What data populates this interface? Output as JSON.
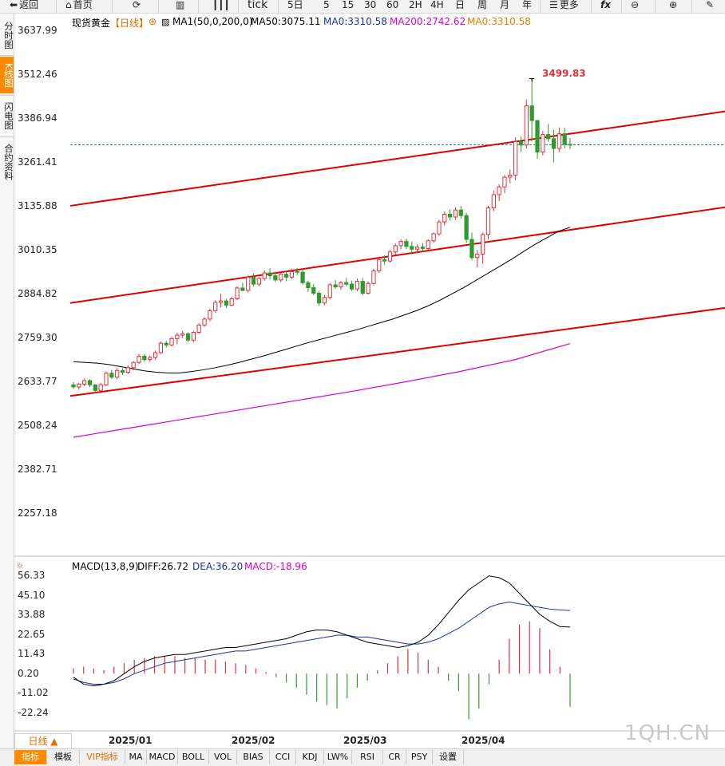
{
  "toolbar": {
    "back": "返回",
    "home": "首页",
    "tick": "tick",
    "periods": [
      "5日",
      "5",
      "15",
      "30",
      "60",
      "2H",
      "4H",
      "日",
      "周",
      "月",
      "年"
    ],
    "more": "更多"
  },
  "left_tabs": [
    "分时图",
    "K线图",
    "闪电图",
    "合约资料"
  ],
  "header": {
    "instrument": "现货黄金",
    "period": "【日线】",
    "ma1": "MA1(50,0,200,0)",
    "ma50": "MA50:3075.11",
    "ma0a": "MA0:3310.58",
    "ma200": "MA200:2742.62",
    "ma0b": "MA0:3310.58"
  },
  "macd_header": {
    "name": "MACD(13,8,9)",
    "diff": "DIFF:26.72",
    "dea": "DEA:36.20",
    "macd": "MACD:-18.96"
  },
  "y_ticks": [
    "3637.99",
    "3512.46",
    "3386.94",
    "3261.41",
    "3135.88",
    "3010.35",
    "2884.82",
    "2759.30",
    "2633.77",
    "2508.24",
    "2382.71",
    "2257.18"
  ],
  "macd_ticks": [
    "56.33",
    "45.10",
    "33.88",
    "22.65",
    "11.43",
    "0.20",
    "-11.02",
    "-22.24"
  ],
  "x_ticks": [
    "2025/01",
    "2025/02",
    "2025/03",
    "2025/04"
  ],
  "high_label": "3499.83",
  "period_select": "日线 ▲",
  "bottom_tabs": [
    "指标",
    "模板",
    "VIP指标",
    "MA",
    "MACD",
    "BOLL",
    "VOL",
    "BIAS",
    "CCI",
    "KDJ",
    "LW%",
    "RSI",
    "CR",
    "PSY",
    "设置"
  ],
  "watermark": "1QH.CN",
  "colors": {
    "up": "#e0313a",
    "down": "#2e9b2e",
    "channel": "#e00000",
    "ma50": "#000000",
    "ma200": "#d400d4",
    "dea": "#1a2fb0",
    "accent": "#ff8a00"
  },
  "chart_data": [
    {
      "type": "candlestick",
      "title": "现货黄金 日线",
      "ylim": [
        2200,
        3660
      ],
      "x_ticks": [
        "2025/01",
        "2025/02",
        "2025/03",
        "2025/04"
      ],
      "candles": [
        [
          2624,
          2632,
          2612,
          2618
        ],
        [
          2618,
          2630,
          2610,
          2626
        ],
        [
          2626,
          2642,
          2620,
          2636
        ],
        [
          2636,
          2640,
          2618,
          2624
        ],
        [
          2624,
          2626,
          2600,
          2608
        ],
        [
          2608,
          2630,
          2604,
          2624
        ],
        [
          2624,
          2662,
          2620,
          2657
        ],
        [
          2657,
          2666,
          2640,
          2646
        ],
        [
          2646,
          2672,
          2640,
          2665
        ],
        [
          2665,
          2672,
          2652,
          2660
        ],
        [
          2660,
          2680,
          2655,
          2673
        ],
        [
          2673,
          2692,
          2666,
          2688
        ],
        [
          2688,
          2712,
          2684,
          2706
        ],
        [
          2706,
          2712,
          2690,
          2696
        ],
        [
          2696,
          2708,
          2690,
          2702
        ],
        [
          2702,
          2722,
          2696,
          2716
        ],
        [
          2716,
          2748,
          2712,
          2743
        ],
        [
          2743,
          2750,
          2730,
          2738
        ],
        [
          2738,
          2762,
          2734,
          2756
        ],
        [
          2756,
          2773,
          2740,
          2766
        ],
        [
          2766,
          2778,
          2758,
          2770
        ],
        [
          2770,
          2774,
          2746,
          2752
        ],
        [
          2752,
          2778,
          2746,
          2774
        ],
        [
          2774,
          2800,
          2770,
          2795
        ],
        [
          2795,
          2818,
          2790,
          2812
        ],
        [
          2812,
          2842,
          2806,
          2836
        ],
        [
          2836,
          2866,
          2830,
          2860
        ],
        [
          2860,
          2884,
          2846,
          2864
        ],
        [
          2864,
          2870,
          2844,
          2852
        ],
        [
          2852,
          2876,
          2848,
          2870
        ],
        [
          2870,
          2906,
          2866,
          2901
        ],
        [
          2901,
          2916,
          2892,
          2894
        ],
        [
          2894,
          2938,
          2888,
          2932
        ],
        [
          2932,
          2942,
          2904,
          2912
        ],
        [
          2912,
          2932,
          2906,
          2928
        ],
        [
          2928,
          2952,
          2922,
          2944
        ],
        [
          2944,
          2958,
          2926,
          2936
        ],
        [
          2936,
          2948,
          2918,
          2924
        ],
        [
          2924,
          2946,
          2918,
          2940
        ],
        [
          2940,
          2950,
          2920,
          2932
        ],
        [
          2932,
          2956,
          2926,
          2948
        ],
        [
          2948,
          2958,
          2938,
          2946
        ],
        [
          2946,
          2956,
          2910,
          2916
        ],
        [
          2916,
          2922,
          2890,
          2902
        ],
        [
          2902,
          2912,
          2880,
          2886
        ],
        [
          2886,
          2892,
          2850,
          2858
        ],
        [
          2858,
          2880,
          2852,
          2874
        ],
        [
          2874,
          2916,
          2868,
          2910
        ],
        [
          2910,
          2924,
          2898,
          2904
        ],
        [
          2904,
          2922,
          2896,
          2916
        ],
        [
          2916,
          2930,
          2906,
          2912
        ],
        [
          2912,
          2922,
          2892,
          2898
        ],
        [
          2898,
          2928,
          2892,
          2920
        ],
        [
          2920,
          2930,
          2880,
          2886
        ],
        [
          2886,
          2920,
          2882,
          2914
        ],
        [
          2914,
          2956,
          2908,
          2950
        ],
        [
          2950,
          2986,
          2944,
          2982
        ],
        [
          2982,
          2994,
          2968,
          2978
        ],
        [
          2978,
          3010,
          2974,
          3004
        ],
        [
          3004,
          3028,
          2996,
          3022
        ],
        [
          3022,
          3040,
          3012,
          3034
        ],
        [
          3034,
          3042,
          3012,
          3020
        ],
        [
          3020,
          3034,
          2998,
          3012
        ],
        [
          3012,
          3026,
          3000,
          3018
        ],
        [
          3018,
          3030,
          3004,
          3014
        ],
        [
          3014,
          3040,
          3008,
          3036
        ],
        [
          3036,
          3060,
          3030,
          3056
        ],
        [
          3056,
          3096,
          3050,
          3090
        ],
        [
          3090,
          3120,
          3080,
          3112
        ],
        [
          3112,
          3126,
          3094,
          3104
        ],
        [
          3104,
          3132,
          3096,
          3124
        ],
        [
          3124,
          3136,
          3100,
          3108
        ],
        [
          3108,
          3116,
          3030,
          3040
        ],
        [
          3040,
          3060,
          2980,
          2988
        ],
        [
          2988,
          3010,
          2960,
          2998
        ],
        [
          2998,
          3060,
          2970,
          3054
        ],
        [
          3054,
          3136,
          3040,
          3130
        ],
        [
          3130,
          3180,
          3120,
          3168
        ],
        [
          3168,
          3198,
          3150,
          3190
        ],
        [
          3190,
          3224,
          3172,
          3218
        ],
        [
          3218,
          3240,
          3200,
          3224
        ],
        [
          3224,
          3332,
          3210,
          3320
        ],
        [
          3320,
          3334,
          3290,
          3310
        ],
        [
          3310,
          3440,
          3300,
          3422
        ],
        [
          3422,
          3500,
          3320,
          3380
        ],
        [
          3380,
          3372,
          3270,
          3290
        ],
        [
          3290,
          3350,
          3280,
          3340
        ],
        [
          3340,
          3370,
          3320,
          3328
        ],
        [
          3328,
          3354,
          3260,
          3300
        ],
        [
          3300,
          3360,
          3290,
          3342
        ],
        [
          3342,
          3360,
          3300,
          3312
        ],
        [
          3312,
          3330,
          3298,
          3310
        ]
      ],
      "ma50": [
        2690,
        2688,
        2686,
        2682,
        2676,
        2670,
        2664,
        2660,
        2658,
        2658,
        2662,
        2667,
        2673,
        2680,
        2688,
        2697,
        2706,
        2716,
        2726,
        2736,
        2746,
        2755,
        2764,
        2773,
        2782,
        2792,
        2802,
        2812,
        2824,
        2836,
        2850,
        2866,
        2884,
        2902,
        2922,
        2942,
        2962,
        2982,
        3004,
        3025,
        3044,
        3063,
        3075
      ],
      "ma200": [
        2474,
        2500,
        2526,
        2552,
        2578,
        2604,
        2632,
        2662,
        2696,
        2742
      ],
      "channel": {
        "upper": [
          3136,
          3406
        ],
        "middle": [
          2858,
          3132
        ],
        "lower": [
          2592,
          2844
        ]
      },
      "last_price": 3310.58,
      "high_annotation": 3499.83
    },
    {
      "type": "macd",
      "title": "MACD(13,8,9)",
      "ylim": [
        -30,
        62
      ],
      "diff": [
        -2,
        -6,
        -7,
        -6,
        -4,
        0,
        4,
        7,
        9,
        10,
        11,
        11,
        12,
        13,
        14,
        15,
        15,
        16,
        17,
        18,
        19,
        20,
        22,
        24,
        25,
        25,
        24,
        22,
        20,
        18,
        17,
        16,
        15,
        16,
        18,
        22,
        28,
        35,
        42,
        48,
        52,
        56,
        55,
        52,
        46,
        40,
        34,
        30,
        27,
        26.72
      ],
      "dea": [
        -3,
        -5,
        -6,
        -6,
        -5,
        -3,
        0,
        2,
        4,
        6,
        7,
        8,
        9,
        10,
        11,
        12,
        13,
        13,
        14,
        15,
        16,
        17,
        18,
        19,
        20,
        21,
        22,
        22,
        21,
        21,
        20,
        19,
        18,
        17,
        17,
        18,
        20,
        23,
        26,
        30,
        34,
        38,
        40,
        41,
        40,
        39,
        38,
        37,
        36.5,
        36.2
      ],
      "macd": [
        3,
        4,
        3,
        2,
        4,
        6,
        8,
        9,
        10,
        10,
        10,
        9,
        9,
        8,
        8,
        7,
        6,
        5,
        3,
        1,
        -2,
        -5,
        -8,
        -12,
        -16,
        -18,
        -20,
        -14,
        -8,
        -4,
        2,
        6,
        10,
        14,
        12,
        8,
        4,
        -4,
        -10,
        -26,
        -20,
        -6,
        8,
        20,
        28,
        30,
        26,
        14,
        4,
        -18.96
      ]
    }
  ]
}
